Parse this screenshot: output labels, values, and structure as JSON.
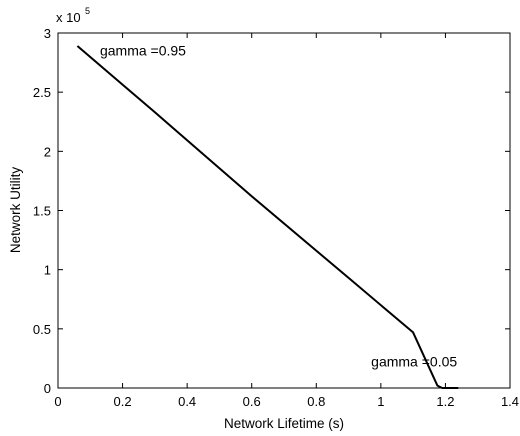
{
  "chart_data": {
    "type": "line",
    "xlabel": "Network Lifetime (s)",
    "ylabel": "Network Utility",
    "exponent_label": "x 10",
    "exponent_power": "5",
    "xlim": [
      0,
      1.4
    ],
    "ylim": [
      0,
      3
    ],
    "x_ticks": [
      0,
      0.2,
      0.4,
      0.6,
      0.8,
      1,
      1.2,
      1.4
    ],
    "x_tick_labels": [
      "0",
      "0.2",
      "0.4",
      "0.6",
      "0.8",
      "1",
      "1.2",
      "1.4"
    ],
    "y_ticks": [
      0,
      0.5,
      1,
      1.5,
      2,
      2.5,
      3
    ],
    "y_tick_labels": [
      "0",
      "0.5",
      "1",
      "1.5",
      "2",
      "2.5",
      "3"
    ],
    "grid": false,
    "series": [
      {
        "x": [
          0.06,
          0.3,
          0.6,
          0.9,
          1.1,
          1.175,
          1.19,
          1.24
        ],
        "y": [
          2.89,
          2.33,
          1.62,
          0.93,
          0.47,
          0.02,
          0.0,
          0.0
        ]
      }
    ],
    "annotations": [
      {
        "text": "gamma =0.95",
        "x": 0.13,
        "y": 2.81
      },
      {
        "text": "gamma =0.05",
        "x": 0.97,
        "y": 0.18
      }
    ]
  }
}
